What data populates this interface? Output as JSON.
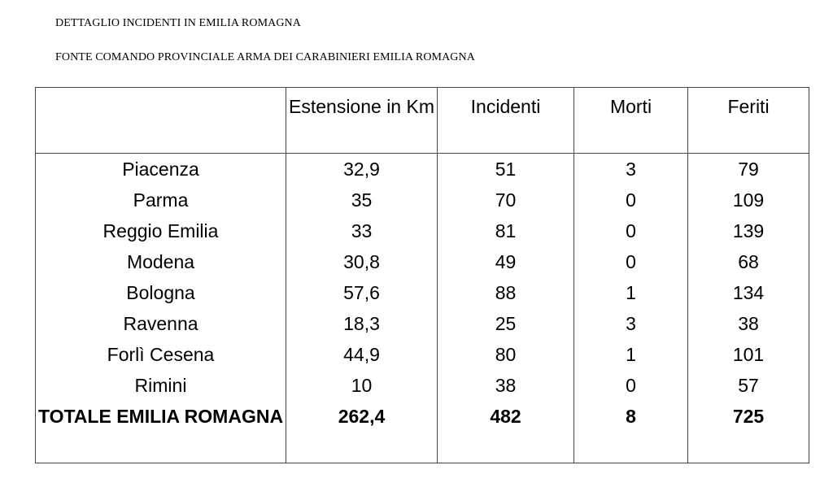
{
  "document": {
    "title": "DETTAGLIO INCIDENTI IN EMILIA ROMAGNA",
    "source": "FONTE COMANDO PROVINCIALE ARMA DEI CARABINIERI EMILIA ROMAGNA"
  },
  "table": {
    "headers": [
      "",
      "Estensione in Km",
      "Incidenti",
      "Morti",
      "Feriti"
    ],
    "rows": [
      [
        "Piacenza",
        "32,9",
        "51",
        "3",
        "79"
      ],
      [
        "Parma",
        "35",
        "70",
        "0",
        "109"
      ],
      [
        "Reggio Emilia",
        "33",
        "81",
        "0",
        "139"
      ],
      [
        "Modena",
        "30,8",
        "49",
        "0",
        "68"
      ],
      [
        "Bologna",
        "57,6",
        "88",
        "1",
        "134"
      ],
      [
        "Ravenna",
        "18,3",
        "25",
        "3",
        "38"
      ],
      [
        "Forlì Cesena",
        "44,9",
        "80",
        "1",
        "101"
      ],
      [
        "Rimini",
        "10",
        "38",
        "0",
        "57"
      ]
    ],
    "total": [
      "TOTALE EMILIA ROMAGNA",
      "262,4",
      "482",
      "8",
      "725"
    ]
  }
}
